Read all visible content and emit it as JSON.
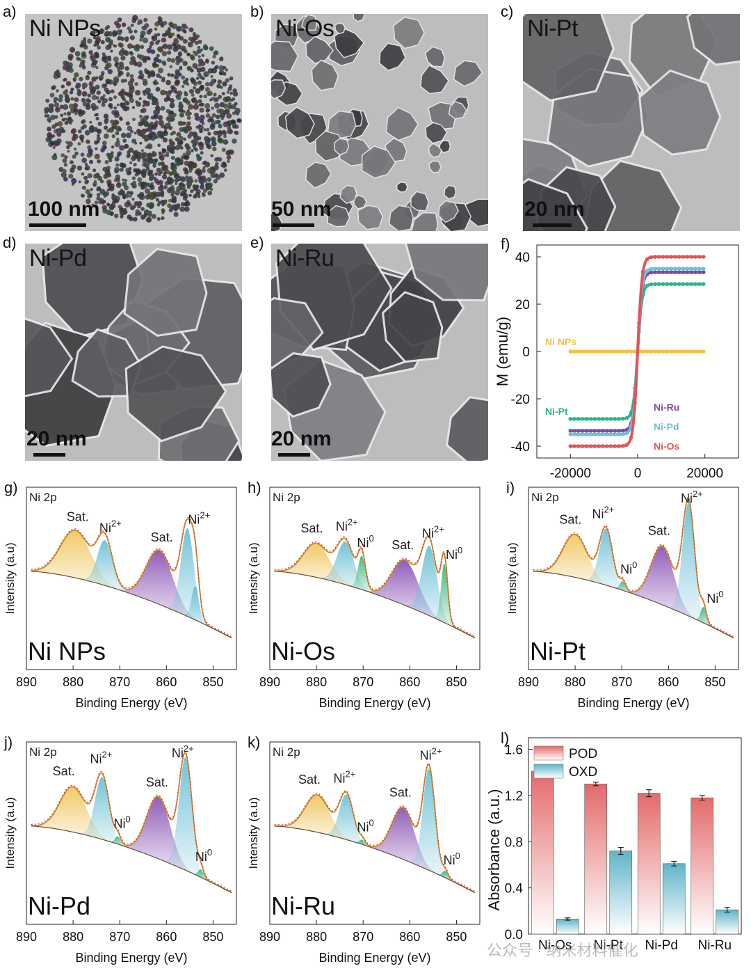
{
  "panels": {
    "a": {
      "letter": "a)",
      "label": "Ni NPs",
      "scale": "100 nm"
    },
    "b": {
      "letter": "b)",
      "label": "Ni-Os",
      "scale": "50 nm"
    },
    "c": {
      "letter": "c)",
      "label": "Ni-Pt",
      "scale": "20 nm"
    },
    "d": {
      "letter": "d)",
      "label": "Ni-Pd",
      "scale": "20 nm"
    },
    "e": {
      "letter": "e)",
      "label": "Ni-Ru",
      "scale": "20 nm"
    }
  },
  "chart_data": [
    {
      "id": "f",
      "letter": "f)",
      "type": "line",
      "ylabel": "M (emu/g)",
      "xlabel": "",
      "xlim": [
        -30000,
        30000
      ],
      "ylim": [
        -45,
        45
      ],
      "xticks": [
        "-20000",
        "0",
        "20000"
      ],
      "yticks": [
        "40",
        "20",
        "0",
        "-20",
        "-40"
      ],
      "series": [
        {
          "name": "Ni NPs",
          "ms": 0,
          "color": "#f2c14e"
        },
        {
          "name": "Ni-Pt",
          "ms": 28.5,
          "color": "#2fb58a"
        },
        {
          "name": "Ni-Ru",
          "ms": 33.5,
          "color": "#7e4aa8"
        },
        {
          "name": "Ni-Pd",
          "ms": 35,
          "color": "#6cc2d8"
        },
        {
          "name": "Ni-Os",
          "ms": 40,
          "color": "#e05656"
        }
      ]
    },
    {
      "id": "g",
      "letter": "g)",
      "type": "line",
      "core": "Ni 2p",
      "sample": "Ni NPs",
      "xlabel": "Binding Energy (eV)",
      "ylabel": "Intensity (a.u)",
      "xticks": [
        "890",
        "880",
        "870",
        "860",
        "850"
      ],
      "labels": [
        {
          "t": "Sat.",
          "x": 879
        },
        {
          "t": "Ni2+",
          "x": 872
        },
        {
          "t": "Sat.",
          "x": 861
        },
        {
          "t": "Ni2+",
          "x": 853
        }
      ],
      "peaks": [
        {
          "c": 879.5,
          "h": 0.42,
          "w": 3.2,
          "color": "#f0c75e"
        },
        {
          "c": 873.2,
          "h": 0.4,
          "w": 1.6,
          "color": "#6cc0d6"
        },
        {
          "c": 861.5,
          "h": 0.48,
          "w": 2.8,
          "color": "#8a55b5"
        },
        {
          "c": 855.5,
          "h": 0.78,
          "w": 1.4,
          "color": "#6cc0d6"
        },
        {
          "c": 853.8,
          "h": 0.3,
          "w": 0.8,
          "color": "#6cc0d6"
        }
      ]
    },
    {
      "id": "h",
      "letter": "h)",
      "type": "line",
      "core": "Ni 2p",
      "sample": "Ni-Os",
      "xlabel": "Binding Energy (eV)",
      "ylabel": "Intensity (a.u)",
      "xticks": [
        "890",
        "880",
        "870",
        "860",
        "850"
      ],
      "labels": [
        {
          "t": "Sat.",
          "x": 881
        },
        {
          "t": "Ni2+",
          "x": 873.5
        },
        {
          "t": "Ni0",
          "x": 869.5
        },
        {
          "t": "Sat.",
          "x": 861.5
        },
        {
          "t": "Ni2+",
          "x": 855
        },
        {
          "t": "Ni0",
          "x": 850.5
        }
      ],
      "peaks": [
        {
          "c": 880,
          "h": 0.3,
          "w": 2.8,
          "color": "#f0c75e"
        },
        {
          "c": 873.8,
          "h": 0.38,
          "w": 1.8,
          "color": "#6cc0d6"
        },
        {
          "c": 870.3,
          "h": 0.3,
          "w": 0.8,
          "color": "#3cb57d"
        },
        {
          "c": 861,
          "h": 0.4,
          "w": 2.8,
          "color": "#8a55b5"
        },
        {
          "c": 855.8,
          "h": 0.62,
          "w": 1.6,
          "color": "#6cc0d6"
        },
        {
          "c": 852.6,
          "h": 0.52,
          "w": 0.7,
          "color": "#3cb57d"
        }
      ]
    },
    {
      "id": "i",
      "letter": "i)",
      "type": "line",
      "core": "Ni 2p",
      "sample": "Ni-Pt",
      "xlabel": "Binding Energy (eV)",
      "ylabel": "Intensity (a.u)",
      "xticks": [
        "890",
        "880",
        "870",
        "860",
        "850"
      ],
      "labels": [
        {
          "t": "Sat.",
          "x": 881
        },
        {
          "t": "Ni2+",
          "x": 874
        },
        {
          "t": "Ni0",
          "x": 868.5
        },
        {
          "t": "Sat.",
          "x": 862
        },
        {
          "t": "Ni2+",
          "x": 855
        },
        {
          "t": "Ni0",
          "x": 850
        }
      ],
      "peaks": [
        {
          "c": 880,
          "h": 0.38,
          "w": 2.6,
          "color": "#f0c75e"
        },
        {
          "c": 873.4,
          "h": 0.5,
          "w": 1.4,
          "color": "#6cc0d6"
        },
        {
          "c": 869.8,
          "h": 0.08,
          "w": 0.6,
          "color": "#3cb57d"
        },
        {
          "c": 861.3,
          "h": 0.52,
          "w": 2.4,
          "color": "#8a55b5"
        },
        {
          "c": 855.7,
          "h": 1.0,
          "w": 1.3,
          "color": "#6cc0d6"
        },
        {
          "c": 852.5,
          "h": 0.14,
          "w": 0.6,
          "color": "#3cb57d"
        }
      ]
    },
    {
      "id": "j",
      "letter": "j)",
      "type": "line",
      "core": "Ni 2p",
      "sample": "Ni-Pd",
      "xlabel": "Binding Energy (eV)",
      "ylabel": "Intensity (a.u)",
      "xticks": [
        "890",
        "880",
        "870",
        "860",
        "850"
      ],
      "labels": [
        {
          "t": "Sat.",
          "x": 882
        },
        {
          "t": "Ni2+",
          "x": 874
        },
        {
          "t": "Ni0",
          "x": 869.5
        },
        {
          "t": "Sat.",
          "x": 862
        },
        {
          "t": "Ni2+",
          "x": 856.5
        },
        {
          "t": "Ni0",
          "x": 852
        }
      ],
      "peaks": [
        {
          "c": 880,
          "h": 0.4,
          "w": 2.8,
          "color": "#f0c75e"
        },
        {
          "c": 873.8,
          "h": 0.55,
          "w": 1.5,
          "color": "#6cc0d6"
        },
        {
          "c": 870.4,
          "h": 0.07,
          "w": 0.6,
          "color": "#3cb57d"
        },
        {
          "c": 861.7,
          "h": 0.55,
          "w": 2.5,
          "color": "#8a55b5"
        },
        {
          "c": 855.9,
          "h": 1.0,
          "w": 1.4,
          "color": "#6cc0d6"
        },
        {
          "c": 852.6,
          "h": 0.07,
          "w": 0.6,
          "color": "#3cb57d"
        }
      ]
    },
    {
      "id": "k",
      "letter": "k)",
      "type": "line",
      "core": "Ni 2p",
      "sample": "Ni-Ru",
      "xlabel": "Binding Energy (eV)",
      "ylabel": "Intensity (a.u)",
      "xticks": [
        "890",
        "880",
        "870",
        "860",
        "850"
      ],
      "labels": [
        {
          "t": "Sat.",
          "x": 881.5
        },
        {
          "t": "Ni2+",
          "x": 874
        },
        {
          "t": "Ni0",
          "x": 869.5
        },
        {
          "t": "Sat.",
          "x": 862
        },
        {
          "t": "Ni2+",
          "x": 855.5
        },
        {
          "t": "Ni0",
          "x": 851
        }
      ],
      "peaks": [
        {
          "c": 879.8,
          "h": 0.33,
          "w": 2.6,
          "color": "#f0c75e"
        },
        {
          "c": 873.6,
          "h": 0.4,
          "w": 1.5,
          "color": "#6cc0d6"
        },
        {
          "c": 870.2,
          "h": 0.04,
          "w": 0.6,
          "color": "#3cb57d"
        },
        {
          "c": 861.4,
          "h": 0.46,
          "w": 2.4,
          "color": "#8a55b5"
        },
        {
          "c": 855.9,
          "h": 0.9,
          "w": 1.3,
          "color": "#6cc0d6"
        },
        {
          "c": 852.4,
          "h": 0.06,
          "w": 0.6,
          "color": "#3cb57d"
        }
      ]
    },
    {
      "id": "l",
      "letter": "l)",
      "type": "bar",
      "ylabel": "Absorbance (a.u.)",
      "xlabel": "",
      "ylim": [
        0,
        1.7
      ],
      "yticks": [
        "0.0",
        "0.4",
        "0.8",
        "1.2",
        "1.6"
      ],
      "categories": [
        "Ni-Os",
        "Ni-Pt",
        "Ni-Pd",
        "Ni-Ru"
      ],
      "series": [
        {
          "name": "POD",
          "values": [
            1.41,
            1.3,
            1.22,
            1.18
          ],
          "err": [
            0.02,
            0.015,
            0.03,
            0.02
          ],
          "color": "#e46a6a"
        },
        {
          "name": "OXD",
          "values": [
            0.13,
            0.72,
            0.61,
            0.21
          ],
          "err": [
            0.01,
            0.03,
            0.02,
            0.02
          ],
          "color": "#5fb4c9"
        }
      ]
    }
  ],
  "watermark": "公众号 · 纳米材料催化"
}
